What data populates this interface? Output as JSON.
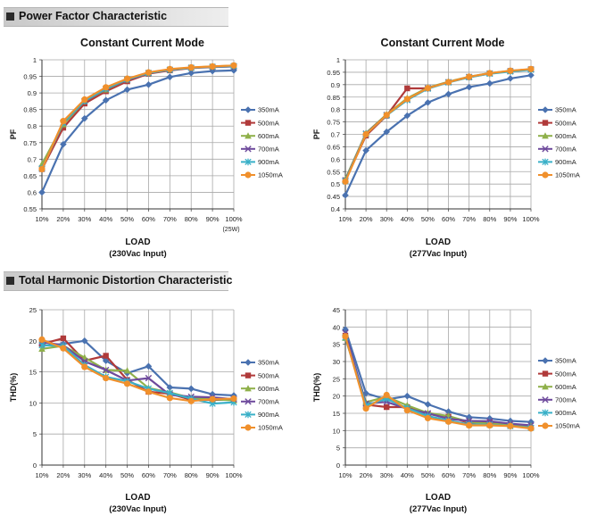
{
  "sections": {
    "pf": {
      "title": "Power Factor Characteristic"
    },
    "thd": {
      "title": "Total Harmonic Distortion Characteristic"
    }
  },
  "colors": {
    "350mA": "#4a72b0",
    "500mA": "#b03a3a",
    "600mA": "#8fb04a",
    "700mA": "#6e4a9c",
    "900mA": "#3ab0c8",
    "1050mA": "#f0902c"
  },
  "chart_data": [
    {
      "id": "pf230",
      "type": "line",
      "title": "Constant Current Mode",
      "xlabel": "LOAD",
      "xlabel2": "(230Vac Input)",
      "ylabel": "PF",
      "extra_label": "(25W)",
      "ylim": [
        0.55,
        1
      ],
      "yticks": [
        "0.55",
        "0.6",
        "0.65",
        "0.7",
        "0.75",
        "0.8",
        "0.85",
        "0.9",
        "0.95",
        "1"
      ],
      "categories": [
        "10%",
        "20%",
        "30%",
        "40%",
        "50%",
        "60%",
        "70%",
        "80%",
        "90%",
        "100%"
      ],
      "grid": true,
      "legend": "right",
      "series": [
        {
          "name": "350mA",
          "marker": "diamond",
          "values": [
            0.6,
            0.745,
            0.823,
            0.878,
            0.91,
            0.925,
            0.948,
            0.96,
            0.966,
            0.968
          ]
        },
        {
          "name": "500mA",
          "marker": "square",
          "values": [
            0.67,
            0.795,
            0.868,
            0.905,
            0.935,
            0.958,
            0.968,
            0.975,
            0.978,
            0.98
          ]
        },
        {
          "name": "600mA",
          "marker": "triangle",
          "values": [
            0.685,
            0.805,
            0.875,
            0.91,
            0.94,
            0.96,
            0.97,
            0.976,
            0.98,
            0.982
          ]
        },
        {
          "name": "700mA",
          "marker": "x",
          "values": [
            0.672,
            0.81,
            0.875,
            0.912,
            0.94,
            0.96,
            0.97,
            0.976,
            0.979,
            0.98
          ]
        },
        {
          "name": "900mA",
          "marker": "star",
          "values": [
            0.672,
            0.81,
            0.876,
            0.913,
            0.941,
            0.96,
            0.97,
            0.976,
            0.979,
            0.981
          ]
        },
        {
          "name": "1050mA",
          "marker": "circle",
          "values": [
            0.67,
            0.815,
            0.88,
            0.917,
            0.943,
            0.962,
            0.972,
            0.977,
            0.98,
            0.983
          ]
        }
      ]
    },
    {
      "id": "pf277",
      "type": "line",
      "title": "Constant Current Mode",
      "xlabel": "LOAD",
      "xlabel2": "(277Vac Input)",
      "ylabel": "PF",
      "ylim": [
        0.4,
        1
      ],
      "yticks": [
        "0.4",
        "0.45",
        "0.5",
        "0.55",
        "0.6",
        "0.65",
        "0.7",
        "0.75",
        "0.8",
        "0.85",
        "0.9",
        "0.95",
        "1"
      ],
      "categories": [
        "10%",
        "20%",
        "30%",
        "40%",
        "50%",
        "60%",
        "70%",
        "80%",
        "90%",
        "100%"
      ],
      "grid": true,
      "legend": "right",
      "series": [
        {
          "name": "350mA",
          "marker": "diamond",
          "values": [
            0.455,
            0.635,
            0.71,
            0.775,
            0.828,
            0.862,
            0.89,
            0.905,
            0.925,
            0.938
          ]
        },
        {
          "name": "500mA",
          "marker": "square",
          "values": [
            0.515,
            0.695,
            0.775,
            0.885,
            0.885,
            0.91,
            0.93,
            0.945,
            0.955,
            0.962
          ]
        },
        {
          "name": "600mA",
          "marker": "triangle",
          "values": [
            0.52,
            0.705,
            0.78,
            0.845,
            0.888,
            0.912,
            0.932,
            0.946,
            0.955,
            0.962
          ]
        },
        {
          "name": "700mA",
          "marker": "x",
          "values": [
            0.515,
            0.703,
            0.778,
            0.84,
            0.886,
            0.91,
            0.931,
            0.945,
            0.954,
            0.961
          ]
        },
        {
          "name": "900mA",
          "marker": "star",
          "values": [
            0.512,
            0.701,
            0.776,
            0.838,
            0.884,
            0.909,
            0.93,
            0.944,
            0.953,
            0.96
          ]
        },
        {
          "name": "1050mA",
          "marker": "circle",
          "values": [
            0.51,
            0.7,
            0.778,
            0.842,
            0.886,
            0.91,
            0.932,
            0.946,
            0.956,
            0.963
          ]
        }
      ]
    },
    {
      "id": "thd230",
      "type": "line",
      "xlabel": "LOAD",
      "xlabel2": "(230Vac Input)",
      "ylabel": "THD(%)",
      "ylim": [
        0,
        25
      ],
      "yticks": [
        "0",
        "5",
        "10",
        "15",
        "20",
        "25"
      ],
      "categories": [
        "10%",
        "20%",
        "30%",
        "40%",
        "50%",
        "60%",
        "70%",
        "80%",
        "90%",
        "100%"
      ],
      "grid": true,
      "legend": "right",
      "series": [
        {
          "name": "350mA",
          "marker": "diamond",
          "values": [
            19.2,
            19.5,
            20,
            16.8,
            14.8,
            15.9,
            12.5,
            12.3,
            11.4,
            11.2
          ]
        },
        {
          "name": "500mA",
          "marker": "square",
          "values": [
            19.5,
            20.4,
            16.8,
            17.6,
            13.7,
            11.8,
            11.5,
            10.5,
            10.5,
            10.5
          ]
        },
        {
          "name": "600mA",
          "marker": "triangle",
          "values": [
            18.7,
            19.2,
            17.3,
            15.3,
            15.2,
            12.4,
            11.7,
            10.8,
            10.6,
            10.4
          ]
        },
        {
          "name": "700mA",
          "marker": "x",
          "values": [
            19.8,
            19.3,
            16.7,
            15.3,
            13.6,
            14,
            11.3,
            11,
            10.9,
            10.6
          ]
        },
        {
          "name": "900mA",
          "marker": "star",
          "values": [
            19.3,
            19.2,
            16.1,
            14.2,
            13.5,
            12.3,
            11.6,
            10.7,
            9.9,
            10.1
          ]
        },
        {
          "name": "1050mA",
          "marker": "circle",
          "values": [
            20.2,
            18.8,
            15.8,
            14,
            13.1,
            11.8,
            10.8,
            10.3,
            10.6,
            10.7
          ]
        }
      ]
    },
    {
      "id": "thd277",
      "type": "line",
      "xlabel": "LOAD",
      "xlabel2": "(277Vac Input)",
      "ylabel": "THD(%)",
      "ylim": [
        0,
        45
      ],
      "yticks": [
        "0",
        "5",
        "10",
        "15",
        "20",
        "25",
        "30",
        "35",
        "40",
        "45"
      ],
      "categories": [
        "10%",
        "20%",
        "30%",
        "40%",
        "50%",
        "60%",
        "70%",
        "80%",
        "90%",
        "100%"
      ],
      "grid": true,
      "legend": "right",
      "series": [
        {
          "name": "350mA",
          "marker": "diamond",
          "values": [
            39.3,
            20.8,
            19,
            20,
            17.6,
            15.5,
            13.9,
            13.5,
            12.8,
            12.5
          ]
        },
        {
          "name": "500mA",
          "marker": "square",
          "values": [
            37.5,
            17.5,
            16.8,
            16.8,
            14.8,
            14,
            12.2,
            12.3,
            11.5,
            10.8
          ]
        },
        {
          "name": "600mA",
          "marker": "triangle",
          "values": [
            36.8,
            18.2,
            19.8,
            17.3,
            15.1,
            14.2,
            12.5,
            12,
            11.7,
            11.3
          ]
        },
        {
          "name": "700mA",
          "marker": "x",
          "values": [
            38.3,
            17.8,
            18.3,
            16.3,
            15,
            13.4,
            12.8,
            12.7,
            12,
            11.5
          ]
        },
        {
          "name": "900mA",
          "marker": "star",
          "values": [
            37,
            17.3,
            19.2,
            16.5,
            14.2,
            12.9,
            11.8,
            11.7,
            11.3,
            10.8
          ]
        },
        {
          "name": "1050mA",
          "marker": "circle",
          "values": [
            37.3,
            16.4,
            20.3,
            15.9,
            13.6,
            12.6,
            11.5,
            11.5,
            11.3,
            10.6
          ]
        }
      ]
    }
  ]
}
